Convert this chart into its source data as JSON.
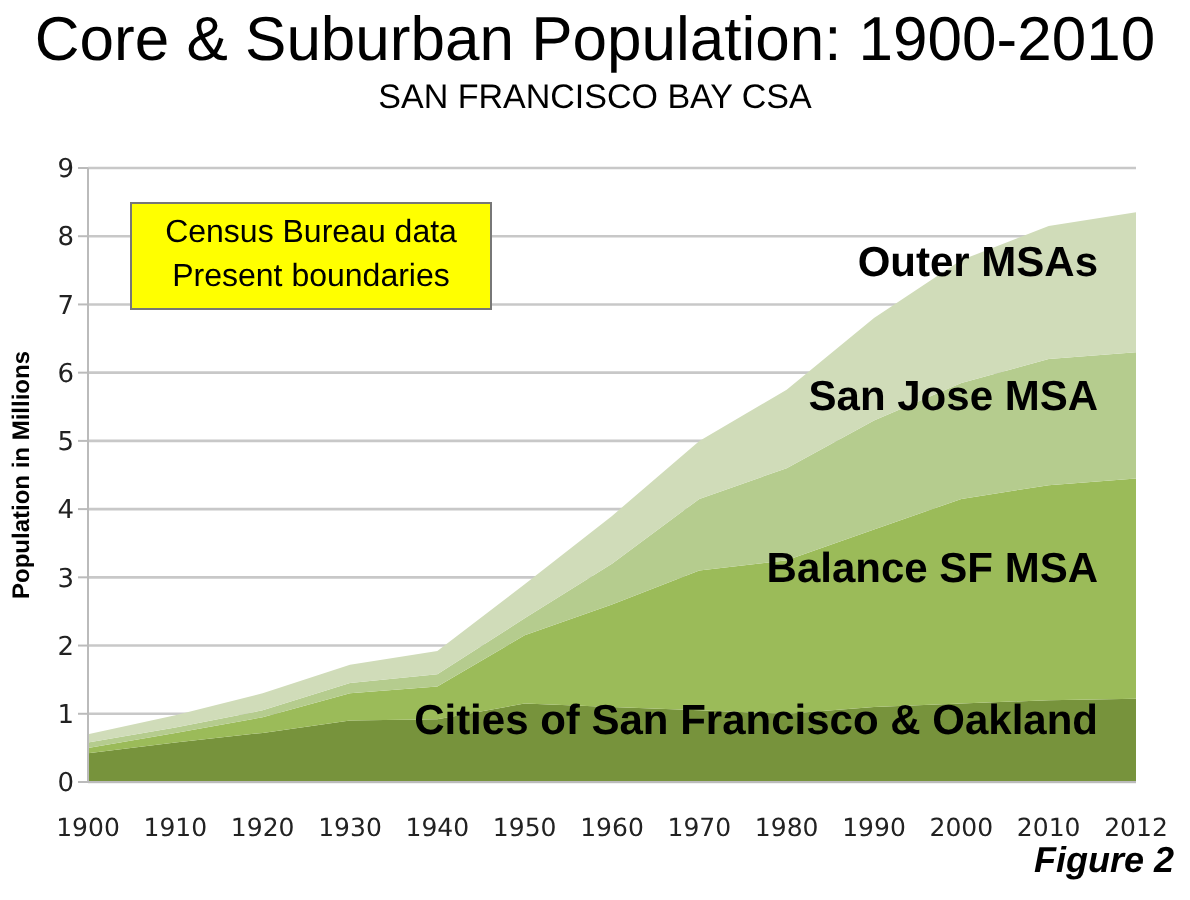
{
  "chart_data": {
    "type": "area",
    "title": "Core & Suburban Population: 1900-2010",
    "subtitle": "SAN FRANCISCO BAY CSA",
    "ylabel": "Population in Millions",
    "categories": [
      "1900",
      "1910",
      "1920",
      "1930",
      "1940",
      "1950",
      "1960",
      "1970",
      "1980",
      "1990",
      "2000",
      "2010",
      "2012"
    ],
    "stacked": true,
    "ylim": [
      0,
      9
    ],
    "yticks": [
      0,
      1,
      2,
      3,
      4,
      5,
      6,
      7,
      8,
      9
    ],
    "grid": "y",
    "series": [
      {
        "name": "Cities of San Francisco & Oakland",
        "color": "#77933c",
        "values": [
          0.42,
          0.58,
          0.72,
          0.9,
          0.92,
          1.15,
          1.1,
          1.05,
          1.0,
          1.1,
          1.15,
          1.2,
          1.22
        ]
      },
      {
        "name": "Balance SF MSA",
        "color": "#9bbb59",
        "values": [
          0.08,
          0.14,
          0.23,
          0.4,
          0.48,
          1.0,
          1.5,
          2.05,
          2.25,
          2.6,
          3.0,
          3.15,
          3.23
        ]
      },
      {
        "name": "San Jose MSA",
        "color": "#b5cc8e",
        "values": [
          0.08,
          0.08,
          0.1,
          0.15,
          0.18,
          0.25,
          0.6,
          1.05,
          1.35,
          1.6,
          1.7,
          1.85,
          1.85
        ]
      },
      {
        "name": "Outer MSAs",
        "color": "#d0dcb9",
        "values": [
          0.12,
          0.18,
          0.25,
          0.27,
          0.34,
          0.5,
          0.7,
          0.85,
          1.15,
          1.5,
          1.8,
          1.95,
          2.05
        ]
      }
    ],
    "annotations": [
      "Census Bureau data\nPresent boundaries",
      "Figure 2"
    ]
  }
}
